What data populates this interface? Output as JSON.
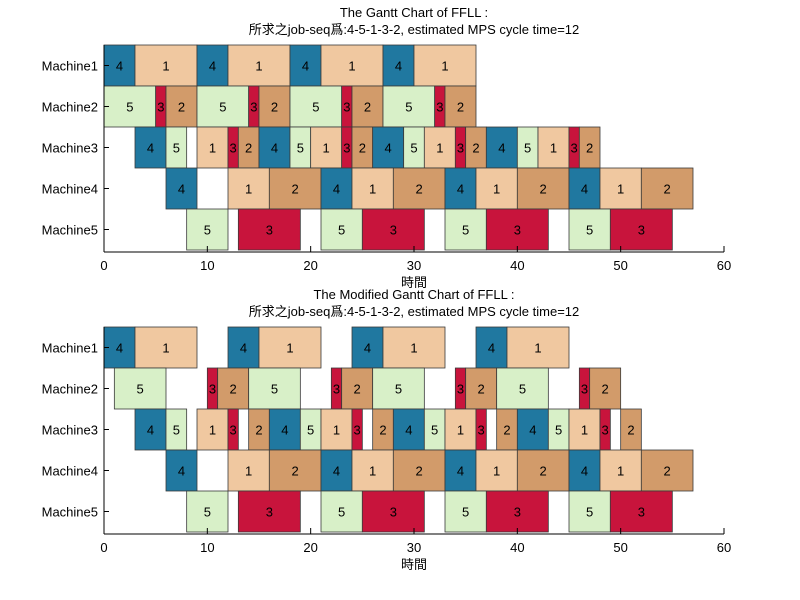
{
  "colors": {
    "1": "#F0C8A0",
    "2": "#D29B6A",
    "3": "#C8143C",
    "4": "#2078A0",
    "5": "#D8F0C8"
  },
  "chart_data": [
    {
      "type": "gantt",
      "title_line1": "The Gantt Chart of FFLL :",
      "title_line2": "所求之job-seq爲:4-5-1-3-2, estimated MPS cycle time=12",
      "xlabel": "時間",
      "xlim": [
        0,
        60
      ],
      "xticks": [
        0,
        10,
        20,
        30,
        40,
        50,
        60
      ],
      "yticklabels": [
        "Machine1",
        "Machine2",
        "Machine3",
        "Machine4",
        "Machine5"
      ],
      "tasks": {
        "Machine1": [
          [
            4,
            0,
            3
          ],
          [
            1,
            3,
            9
          ],
          [
            4,
            9,
            12
          ],
          [
            1,
            12,
            18
          ],
          [
            4,
            18,
            21
          ],
          [
            1,
            21,
            27
          ],
          [
            4,
            27,
            30
          ],
          [
            1,
            30,
            36
          ]
        ],
        "Machine2": [
          [
            5,
            0,
            5
          ],
          [
            3,
            5,
            6
          ],
          [
            2,
            6,
            9
          ],
          [
            5,
            9,
            14
          ],
          [
            3,
            14,
            15
          ],
          [
            2,
            15,
            18
          ],
          [
            5,
            18,
            23
          ],
          [
            3,
            23,
            24
          ],
          [
            2,
            24,
            27
          ],
          [
            5,
            27,
            32
          ],
          [
            3,
            32,
            33
          ],
          [
            2,
            33,
            36
          ]
        ],
        "Machine3": [
          [
            4,
            3,
            6
          ],
          [
            5,
            6,
            8
          ],
          [
            1,
            9,
            12
          ],
          [
            3,
            12,
            13
          ],
          [
            2,
            13,
            15
          ],
          [
            4,
            15,
            18
          ],
          [
            5,
            18,
            20
          ],
          [
            1,
            20,
            23
          ],
          [
            3,
            23,
            24
          ],
          [
            2,
            24,
            26
          ],
          [
            4,
            26,
            29
          ],
          [
            5,
            29,
            31
          ],
          [
            1,
            31,
            34
          ],
          [
            3,
            34,
            35
          ],
          [
            2,
            35,
            37
          ],
          [
            4,
            37,
            40
          ],
          [
            5,
            40,
            42
          ],
          [
            1,
            42,
            45
          ],
          [
            3,
            45,
            46
          ],
          [
            2,
            46,
            48
          ]
        ],
        "Machine4": [
          [
            4,
            6,
            9
          ],
          [
            1,
            12,
            16
          ],
          [
            2,
            16,
            21
          ],
          [
            4,
            21,
            24
          ],
          [
            1,
            24,
            28
          ],
          [
            2,
            28,
            33
          ],
          [
            4,
            33,
            36
          ],
          [
            1,
            36,
            40
          ],
          [
            2,
            40,
            45
          ],
          [
            4,
            45,
            48
          ],
          [
            1,
            48,
            52
          ],
          [
            2,
            52,
            57
          ]
        ],
        "Machine5": [
          [
            5,
            8,
            12
          ],
          [
            3,
            13,
            19
          ],
          [
            5,
            21,
            25
          ],
          [
            3,
            25,
            31
          ],
          [
            5,
            33,
            37
          ],
          [
            3,
            37,
            43
          ],
          [
            5,
            45,
            49
          ],
          [
            3,
            49,
            55
          ]
        ]
      }
    },
    {
      "type": "gantt",
      "title_line1": "The Modified Gantt Chart of FFLL :",
      "title_line2": "所求之job-seq爲:4-5-1-3-2, estimated MPS cycle time=12",
      "xlabel": "時間",
      "xlim": [
        0,
        60
      ],
      "xticks": [
        0,
        10,
        20,
        30,
        40,
        50,
        60
      ],
      "yticklabels": [
        "Machine1",
        "Machine2",
        "Machine3",
        "Machine4",
        "Machine5"
      ],
      "tasks": {
        "Machine1": [
          [
            4,
            0,
            3
          ],
          [
            1,
            3,
            9
          ],
          [
            4,
            12,
            15
          ],
          [
            1,
            15,
            21
          ],
          [
            4,
            24,
            27
          ],
          [
            1,
            27,
            33
          ],
          [
            4,
            36,
            39
          ],
          [
            1,
            39,
            45
          ]
        ],
        "Machine2": [
          [
            5,
            1,
            6
          ],
          [
            3,
            10,
            11
          ],
          [
            2,
            11,
            14
          ],
          [
            5,
            14,
            19
          ],
          [
            3,
            22,
            23
          ],
          [
            2,
            23,
            26
          ],
          [
            5,
            26,
            31
          ],
          [
            3,
            34,
            35
          ],
          [
            2,
            35,
            38
          ],
          [
            5,
            38,
            43
          ],
          [
            3,
            46,
            47
          ],
          [
            2,
            47,
            50
          ]
        ],
        "Machine3": [
          [
            4,
            3,
            6
          ],
          [
            5,
            6,
            8
          ],
          [
            1,
            9,
            12
          ],
          [
            3,
            12,
            13
          ],
          [
            2,
            14,
            16
          ],
          [
            4,
            16,
            19
          ],
          [
            5,
            19,
            21
          ],
          [
            1,
            21,
            24
          ],
          [
            3,
            24,
            25
          ],
          [
            2,
            26,
            28
          ],
          [
            4,
            28,
            31
          ],
          [
            5,
            31,
            33
          ],
          [
            1,
            33,
            36
          ],
          [
            3,
            36,
            37
          ],
          [
            2,
            38,
            40
          ],
          [
            4,
            40,
            43
          ],
          [
            5,
            43,
            45
          ],
          [
            1,
            45,
            48
          ],
          [
            3,
            48,
            49
          ],
          [
            2,
            50,
            52
          ]
        ],
        "Machine4": [
          [
            4,
            6,
            9
          ],
          [
            1,
            12,
            16
          ],
          [
            2,
            16,
            21
          ],
          [
            4,
            21,
            24
          ],
          [
            1,
            24,
            28
          ],
          [
            2,
            28,
            33
          ],
          [
            4,
            33,
            36
          ],
          [
            1,
            36,
            40
          ],
          [
            2,
            40,
            45
          ],
          [
            4,
            45,
            48
          ],
          [
            1,
            48,
            52
          ],
          [
            2,
            52,
            57
          ]
        ],
        "Machine5": [
          [
            5,
            8,
            12
          ],
          [
            3,
            13,
            19
          ],
          [
            5,
            21,
            25
          ],
          [
            3,
            25,
            31
          ],
          [
            5,
            33,
            37
          ],
          [
            3,
            37,
            43
          ],
          [
            5,
            45,
            49
          ],
          [
            3,
            49,
            55
          ]
        ]
      }
    }
  ]
}
